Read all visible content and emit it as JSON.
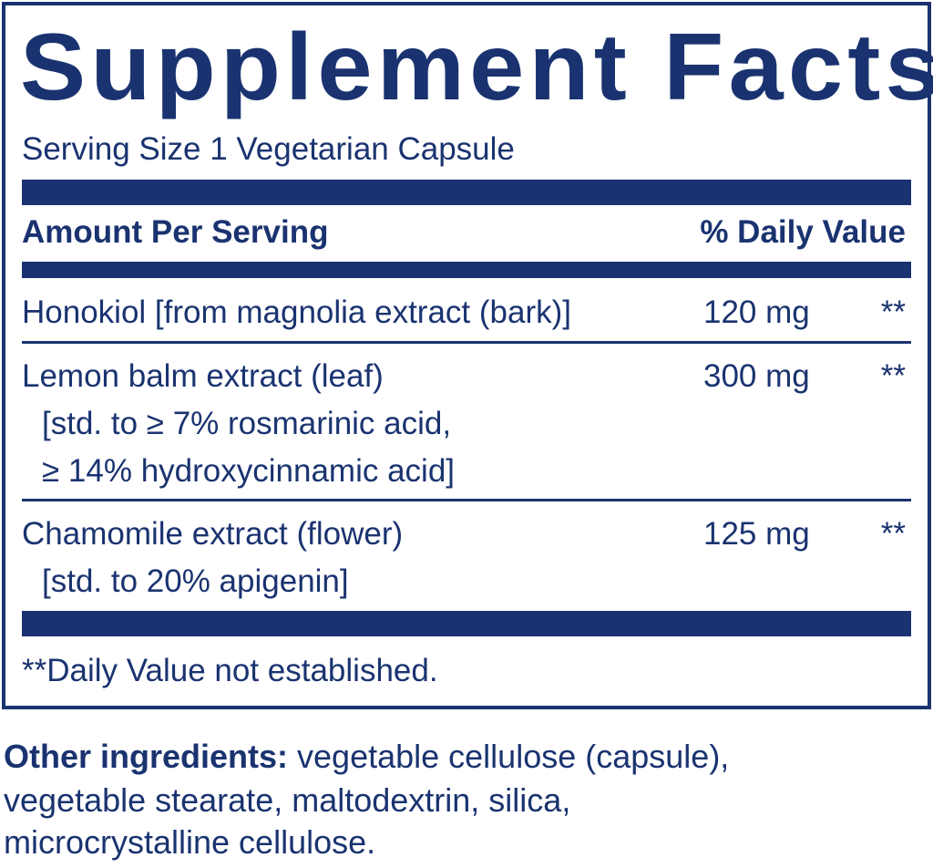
{
  "title": "Supplement Facts",
  "serving_size": "Serving Size 1 Vegetarian Capsule",
  "header": {
    "amount": "Amount Per Serving",
    "dv": "% Daily Value"
  },
  "rows": [
    {
      "name": "Honokiol [from magnolia extract (bark)]",
      "sub": [],
      "amount": "120 mg",
      "dv": "**"
    },
    {
      "name": "Lemon balm extract (leaf)",
      "sub": [
        "[std. to ≥ 7% rosmarinic acid,",
        "≥ 14% hydroxycinnamic acid]"
      ],
      "amount": "300 mg",
      "dv": "**"
    },
    {
      "name": "Chamomile extract (flower)",
      "sub": [
        "[std. to 20% apigenin]"
      ],
      "amount": "125 mg",
      "dv": "**"
    }
  ],
  "footnote": "**Daily Value not established.",
  "other_ingredients": {
    "label": "Other ingredients:",
    "lines": [
      " vegetable cellulose (capsule),",
      "vegetable stearate, maltodextrin, silica,",
      "microcrystalline cellulose."
    ]
  },
  "colors": {
    "brand": "#1a3370"
  }
}
